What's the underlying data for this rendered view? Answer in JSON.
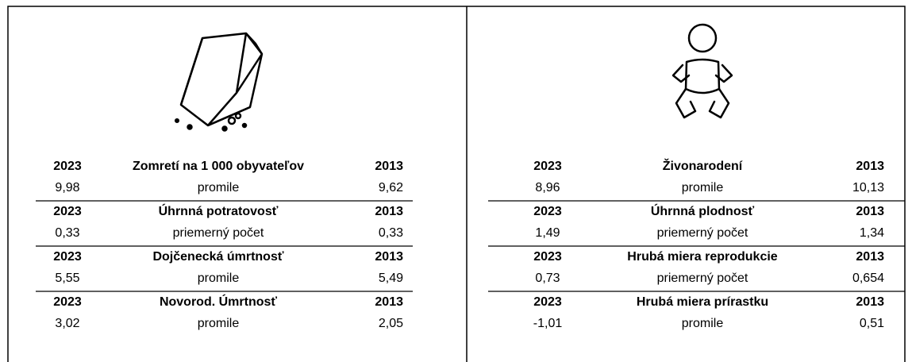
{
  "panels": [
    {
      "blocks": [
        {
          "year_left": "2023",
          "title": "Zomretí na 1 000 obyvateľov",
          "year_right": "2013",
          "value_left": "9,98",
          "unit": "promile",
          "value_right": "9,62"
        },
        {
          "year_left": "2023",
          "title": "Úhrnná potratovosť",
          "year_right": "2013",
          "value_left": "0,33",
          "unit": "priemerný počet",
          "value_right": "0,33"
        },
        {
          "year_left": "2023",
          "title": "Dojčenecká úmrtnosť",
          "year_right": "2013",
          "value_left": "5,55",
          "unit": "promile",
          "value_right": "5,49"
        },
        {
          "year_left": "2023",
          "title": "Novorod. Úmrtnosť",
          "year_right": "2013",
          "value_left": "3,02",
          "unit": "promile",
          "value_right": "2,05"
        }
      ]
    },
    {
      "blocks": [
        {
          "year_left": "2023",
          "title": "Živonarodení",
          "year_right": "2013",
          "value_left": "8,96",
          "unit": "promile",
          "value_right": "10,13"
        },
        {
          "year_left": "2023",
          "title": "Úhrnná plodnosť",
          "year_right": "2013",
          "value_left": "1,49",
          "unit": "priemerný počet",
          "value_right": "1,34"
        },
        {
          "year_left": "2023",
          "title": "Hrubá miera reprodukcie",
          "year_right": "2013",
          "value_left": "0,73",
          "unit": "priemerný počet",
          "value_right": "0,654"
        },
        {
          "year_left": "2023",
          "title": "Hrubá miera prírastku",
          "year_right": "2013",
          "value_left": "-1,01",
          "unit": "promile",
          "value_right": "0,51"
        }
      ]
    }
  ]
}
